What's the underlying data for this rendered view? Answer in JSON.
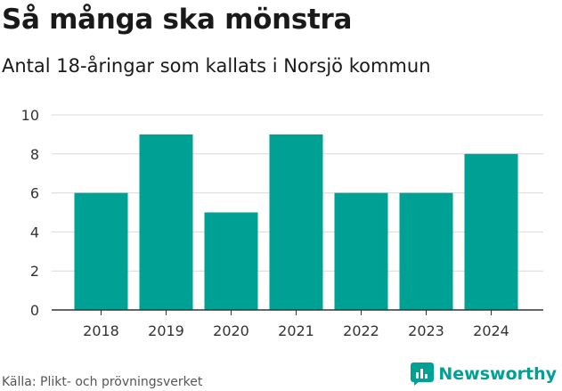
{
  "colors": {
    "bar": "#00a195",
    "grid": "#d9d9d9",
    "axis": "#333333",
    "brand": "#00a195"
  },
  "chart_data": {
    "type": "bar",
    "title": "Så många ska mönstra",
    "subtitle": "Antal 18-åringar som kallats i Norsjö kommun",
    "categories": [
      "2018",
      "2019",
      "2020",
      "2021",
      "2022",
      "2023",
      "2024"
    ],
    "values": [
      6,
      9,
      5,
      9,
      6,
      6,
      8
    ],
    "yticks": [
      0,
      2,
      4,
      6,
      8,
      10
    ],
    "ylim": [
      0,
      10
    ],
    "xlabel": "",
    "ylabel": "",
    "grid": true,
    "legend": "none"
  },
  "footer": {
    "source": "Källa: Plikt- och prövningsverket",
    "brand": "Newsworthy",
    "brand_icon": "newsworthy-logo-icon"
  }
}
